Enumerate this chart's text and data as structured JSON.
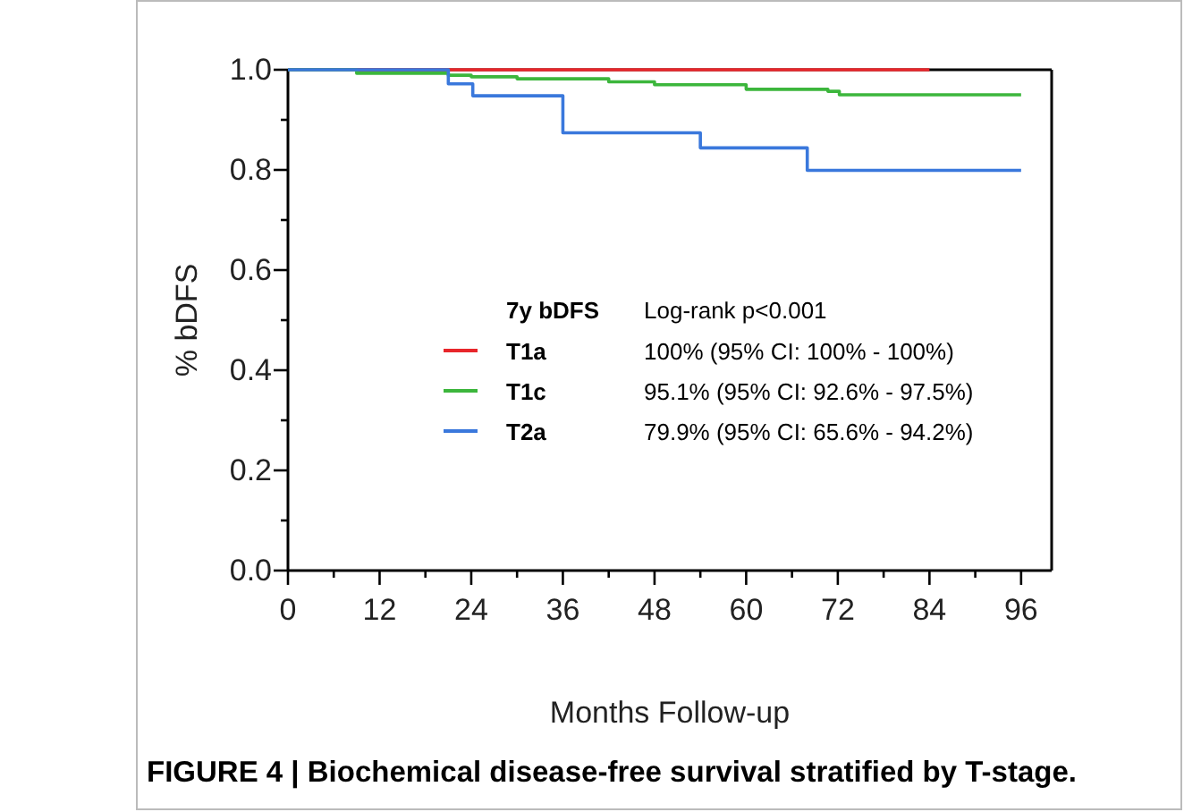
{
  "chart_data": {
    "type": "step",
    "xlabel": "Months Follow-up",
    "ylabel": "% bDFS",
    "legend_title": "7y bDFS",
    "legend": "center",
    "xlim": [
      0,
      100
    ],
    "ylim": [
      0,
      1
    ],
    "xticks": [
      0,
      {
        "value": 6,
        "label": null
      },
      12,
      {
        "value": 18,
        "label": null
      },
      24,
      {
        "value": 30,
        "label": null
      },
      36,
      {
        "value": 42,
        "label": null
      },
      48,
      {
        "value": 54,
        "label": null
      },
      60,
      {
        "value": 66,
        "label": null
      },
      72,
      {
        "value": 78,
        "label": null
      },
      84,
      {
        "value": 90,
        "label": null
      },
      96
    ],
    "yticks": [
      {
        "value": 0,
        "label": "0.0"
      },
      {
        "value": 0.1,
        "label": null
      },
      0.2,
      {
        "value": 0.3,
        "label": null
      },
      0.4,
      {
        "value": 0.5,
        "label": null
      },
      0.6,
      {
        "value": 0.7,
        "label": null
      },
      0.8,
      {
        "value": 0.9,
        "label": null
      },
      {
        "value": 1,
        "label": "1.0"
      }
    ],
    "series": [
      {
        "name": "T1a",
        "color": "#e8262b",
        "x": [
          0,
          84
        ],
        "values": [
          1,
          1
        ]
      },
      {
        "name": "T1c",
        "color": "#3cb63c",
        "x": [
          0,
          9,
          21,
          24,
          30,
          42,
          48,
          60,
          70.7,
          72.2,
          96
        ],
        "values": [
          1,
          0.993,
          0.989,
          0.986,
          0.982,
          0.976,
          0.97,
          0.961,
          0.957,
          0.95,
          0.95
        ]
      },
      {
        "name": "T2a",
        "color": "#3a78dc",
        "x": [
          0,
          21,
          24.2,
          36,
          54,
          68,
          96
        ],
        "values": [
          1,
          0.972,
          0.948,
          0.874,
          0.844,
          0.799,
          0.799
        ]
      }
    ],
    "annotations": [
      "Log-rank p<0.001",
      "100% (95% CI: 100% - 100%)",
      "95.1% (95% CI: 92.6% - 97.5%)",
      "79.9% (95% CI: 65.6% - 94.2%)",
      "FIGURE 4 | Biochemical disease-free survival stratified by T-stage."
    ]
  }
}
